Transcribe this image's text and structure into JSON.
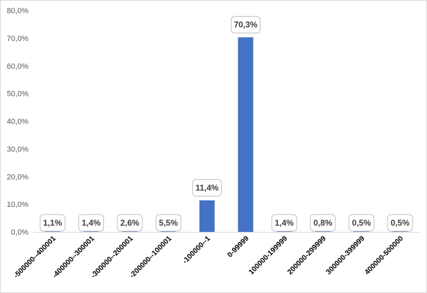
{
  "chart_data": {
    "type": "bar",
    "categories": [
      "-500000--400001",
      "-400000--300001",
      "-300000--200001",
      "-200000--100001",
      "-100000--1",
      "0-99999",
      "100000-199999",
      "200000-299999",
      "300000-399999",
      "400000-500000"
    ],
    "values": [
      1.1,
      1.4,
      2.6,
      5.5,
      11.4,
      70.3,
      1.4,
      0.8,
      0.5,
      0.5
    ],
    "data_labels": [
      "1,1%",
      "1,4%",
      "2,6%",
      "5,5%",
      "11,4%",
      "70,3%",
      "1,4%",
      "0,8%",
      "0,5%",
      "0,5%"
    ],
    "y_ticks": [
      "0,0%",
      "10,0%",
      "20,0%",
      "30,0%",
      "40,0%",
      "50,0%",
      "60,0%",
      "70,0%",
      "80,0%"
    ],
    "y_tick_values": [
      0,
      10,
      20,
      30,
      40,
      50,
      60,
      70,
      80
    ],
    "ylim": [
      0,
      80
    ],
    "title": "",
    "xlabel": "",
    "ylabel": "",
    "grid": false,
    "legend": "none",
    "bar_color": "#4472c4"
  }
}
